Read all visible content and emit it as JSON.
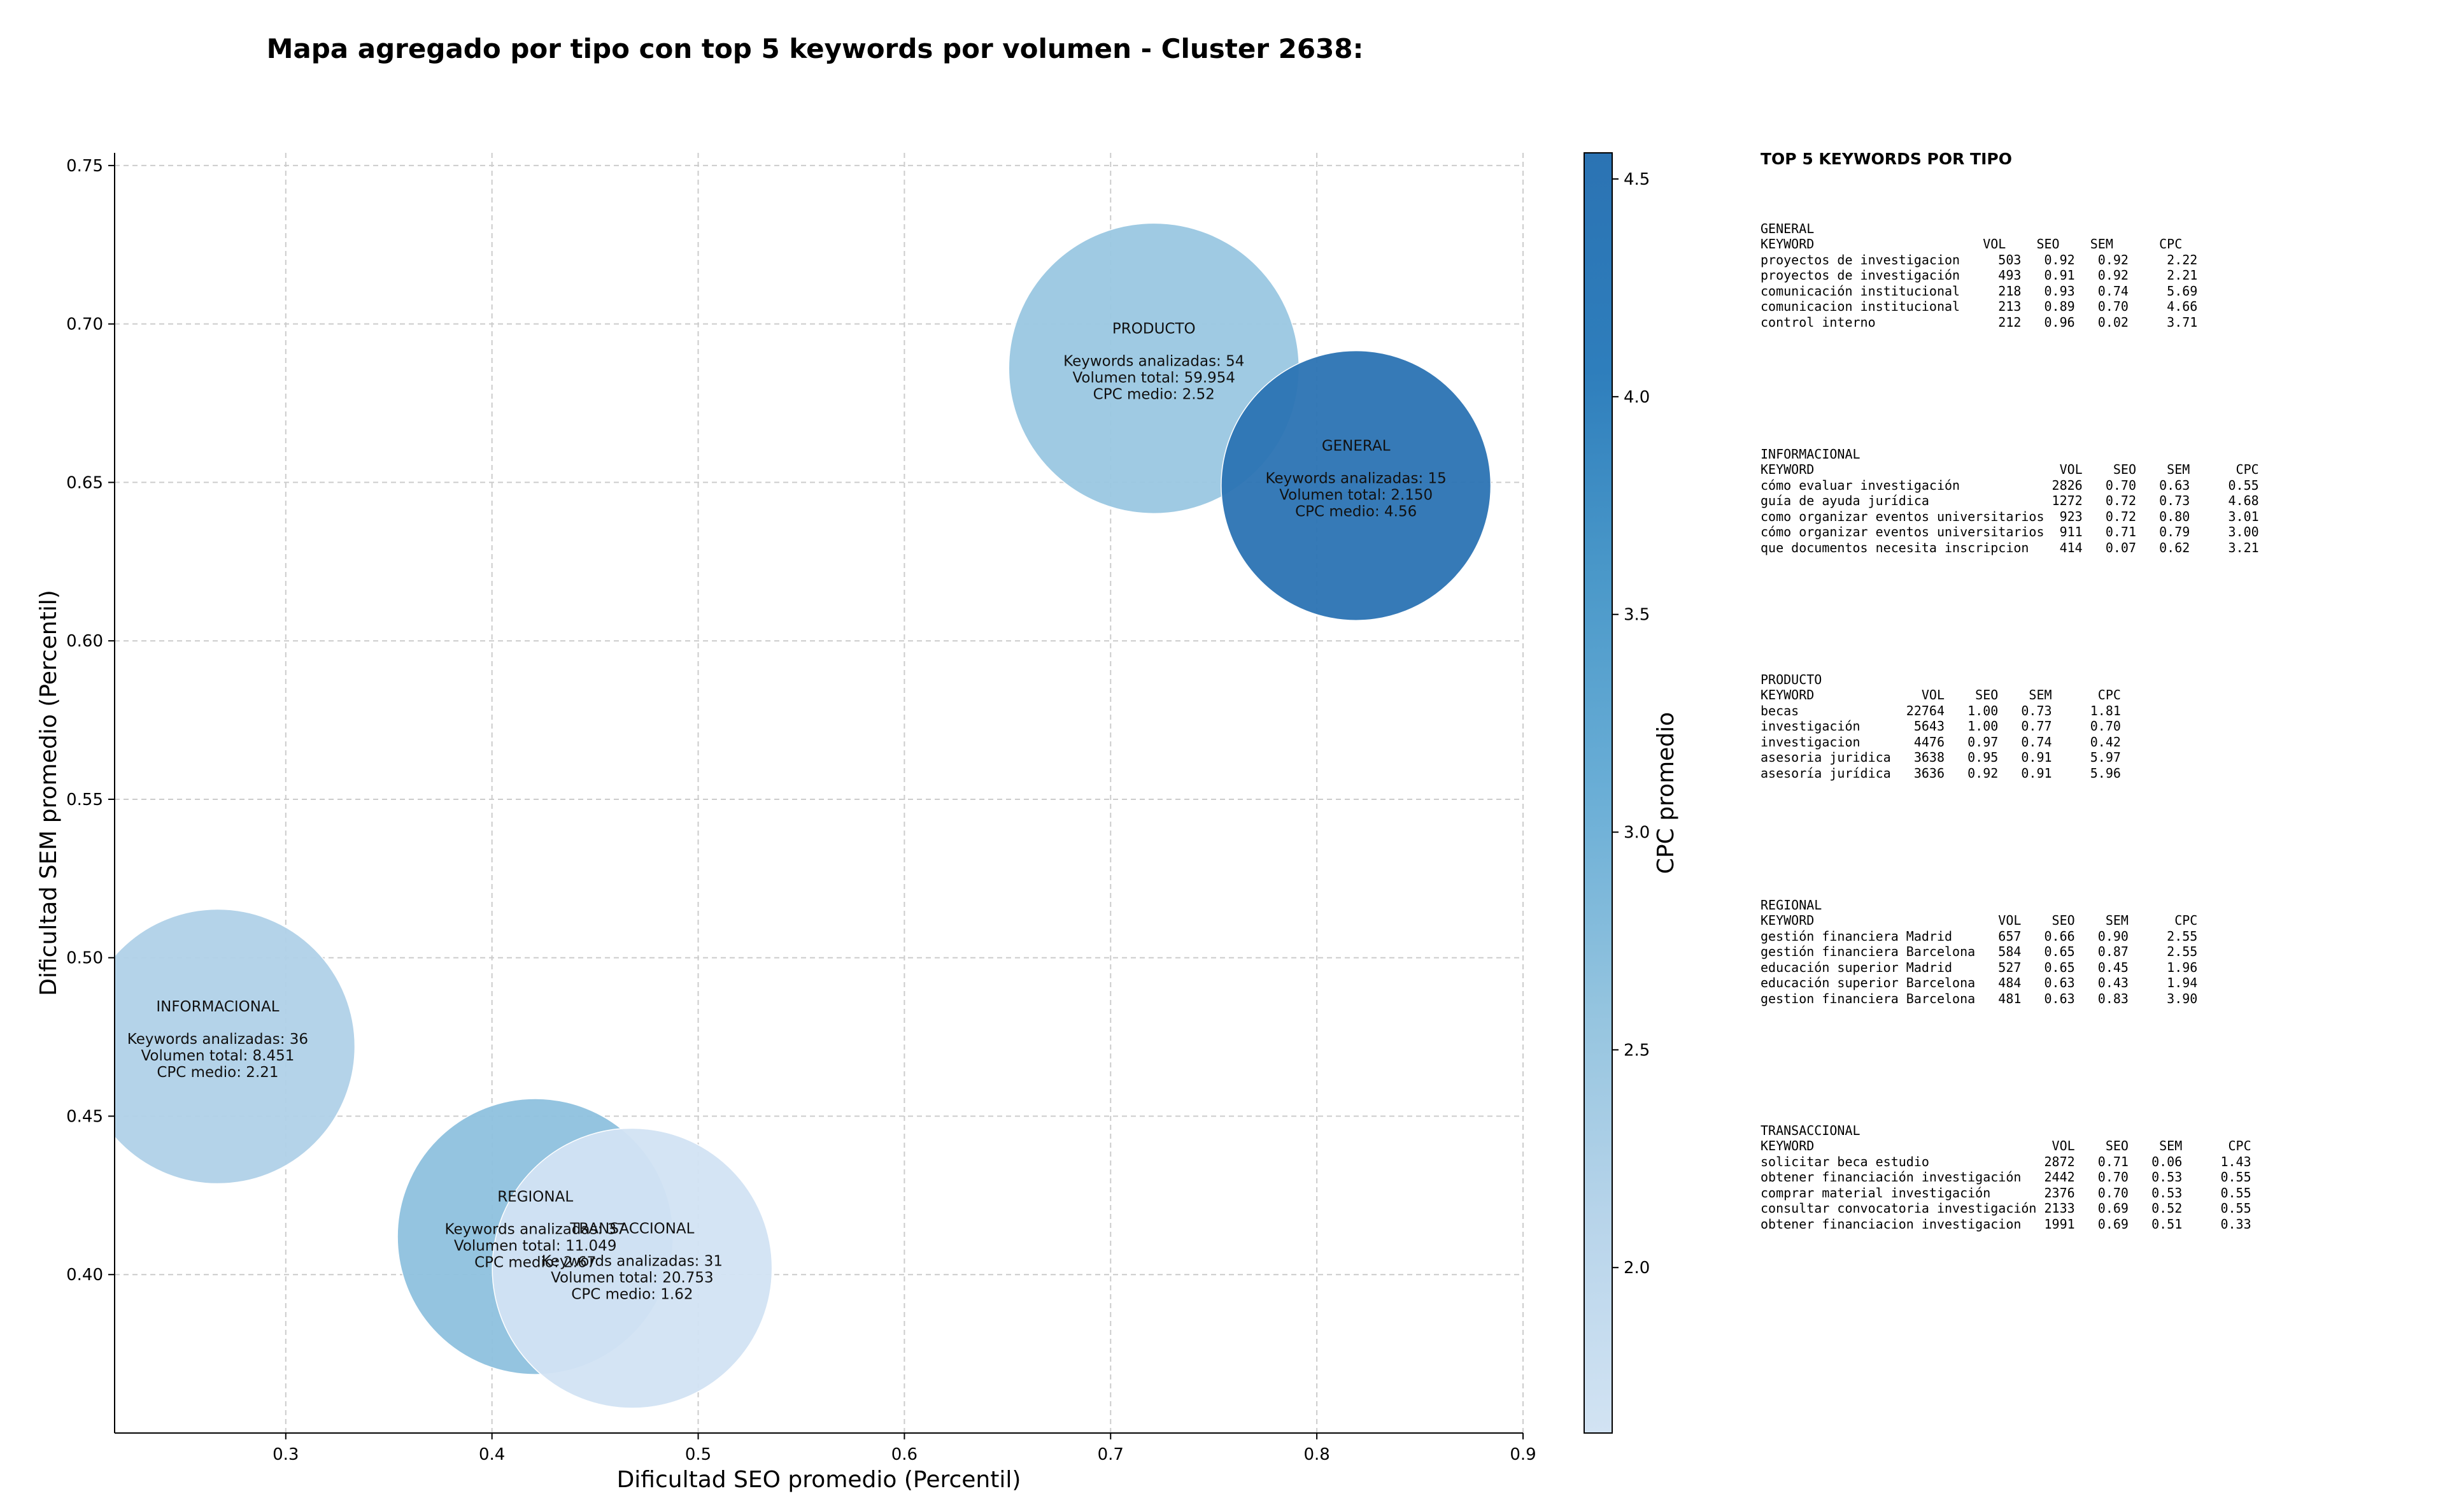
{
  "chart_data": {
    "type": "scatter",
    "title": "Mapa agregado por tipo con top 5 keywords por volumen - Cluster 2638:",
    "xlabel": "Dificultad SEO promedio (Percentil)",
    "ylabel": "Dificultad SEM promedio (Percentil)",
    "xlim": [
      0.217,
      0.9
    ],
    "ylim": [
      0.35,
      0.754
    ],
    "xticks": [
      0.3,
      0.4,
      0.5,
      0.6,
      0.7,
      0.8,
      0.9
    ],
    "yticks": [
      0.4,
      0.45,
      0.5,
      0.55,
      0.6,
      0.65,
      0.7,
      0.75
    ],
    "grid": true,
    "colorbar": {
      "label": "CPC promedio",
      "range": [
        1.62,
        4.56
      ],
      "ticks": [
        2.0,
        2.5,
        3.0,
        3.5,
        4.0,
        4.5
      ],
      "colormap": [
        "#d2e3f3",
        "#b7d4ea",
        "#94c4df",
        "#6aaed6",
        "#4a98c9",
        "#2e7ebc",
        "#2b73b3"
      ]
    },
    "bubble_labels": {
      "count": "Keywords analizadas",
      "volume": "Volumen total",
      "cpc": "CPC medio"
    },
    "points": [
      {
        "tipo": "PRODUCTO",
        "x": 0.721,
        "y": 0.686,
        "keywords": 54,
        "volumen": "59.954",
        "volumen_num": 59954,
        "cpc": 2.52,
        "cpc_text": "2.52"
      },
      {
        "tipo": "GENERAL",
        "x": 0.819,
        "y": 0.649,
        "keywords": 15,
        "volumen": "2.150",
        "volumen_num": 2150,
        "cpc": 4.56,
        "cpc_text": "4.56"
      },
      {
        "tipo": "INFORMACIONAL",
        "x": 0.267,
        "y": 0.472,
        "keywords": 36,
        "volumen": "8.451",
        "volumen_num": 8451,
        "cpc": 2.21,
        "cpc_text": "2.21"
      },
      {
        "tipo": "REGIONAL",
        "x": 0.421,
        "y": 0.412,
        "keywords": 37,
        "volumen": "11.049",
        "volumen_num": 11049,
        "cpc": 2.67,
        "cpc_text": "2.67"
      },
      {
        "tipo": "TRANSACCIONAL",
        "x": 0.468,
        "y": 0.402,
        "keywords": 31,
        "volumen": "20.753",
        "volumen_num": 20753,
        "cpc": 1.62,
        "cpc_text": "1.62"
      }
    ]
  },
  "side_panel": {
    "title": "TOP 5 KEYWORDS POR TIPO",
    "blocks": [
      {
        "tipo": "GENERAL",
        "text": "GENERAL\nKEYWORD                      VOL    SEO    SEM      CPC\nproyectos de investigacion     503   0.92   0.92     2.22\nproyectos de investigación     493   0.91   0.92     2.21\ncomunicación institucional     218   0.93   0.74     5.69\ncomunicacion institucional     213   0.89   0.70     4.66\ncontrol interno                212   0.96   0.02     3.71"
      },
      {
        "tipo": "INFORMACIONAL",
        "text": "INFORMACIONAL\nKEYWORD                                VOL    SEO    SEM      CPC\ncómo evaluar investigación            2826   0.70   0.63     0.55\nguía de ayuda jurídica                1272   0.72   0.73     4.68\ncomo organizar eventos universitarios  923   0.72   0.80     3.01\ncómo organizar eventos universitarios  911   0.71   0.79     3.00\nque documentos necesita inscripcion    414   0.07   0.62     3.21"
      },
      {
        "tipo": "PRODUCTO",
        "text": "PRODUCTO\nKEYWORD              VOL    SEO    SEM      CPC\nbecas              22764   1.00   0.73     1.81\ninvestigación       5643   1.00   0.77     0.70\ninvestigacion       4476   0.97   0.74     0.42\nasesoria juridica   3638   0.95   0.91     5.97\nasesoría jurídica   3636   0.92   0.91     5.96"
      },
      {
        "tipo": "REGIONAL",
        "text": "REGIONAL\nKEYWORD                        VOL    SEO    SEM      CPC\ngestión financiera Madrid      657   0.66   0.90     2.55\ngestión financiera Barcelona   584   0.65   0.87     2.55\neducación superior Madrid      527   0.65   0.45     1.96\neducación superior Barcelona   484   0.63   0.43     1.94\ngestion financiera Barcelona   481   0.63   0.83     3.90"
      },
      {
        "tipo": "TRANSACCIONAL",
        "text": "TRANSACCIONAL\nKEYWORD                               VOL    SEO    SEM      CPC\nsolicitar beca estudio               2872   0.71   0.06     1.43\nobtener financiación investigación   2442   0.70   0.53     0.55\ncomprar material investigación       2376   0.70   0.53     0.55\nconsultar convocatoria investigación 2133   0.69   0.52     0.55\nobtener financiacion investigacion   1991   0.69   0.51     0.33"
      }
    ]
  }
}
